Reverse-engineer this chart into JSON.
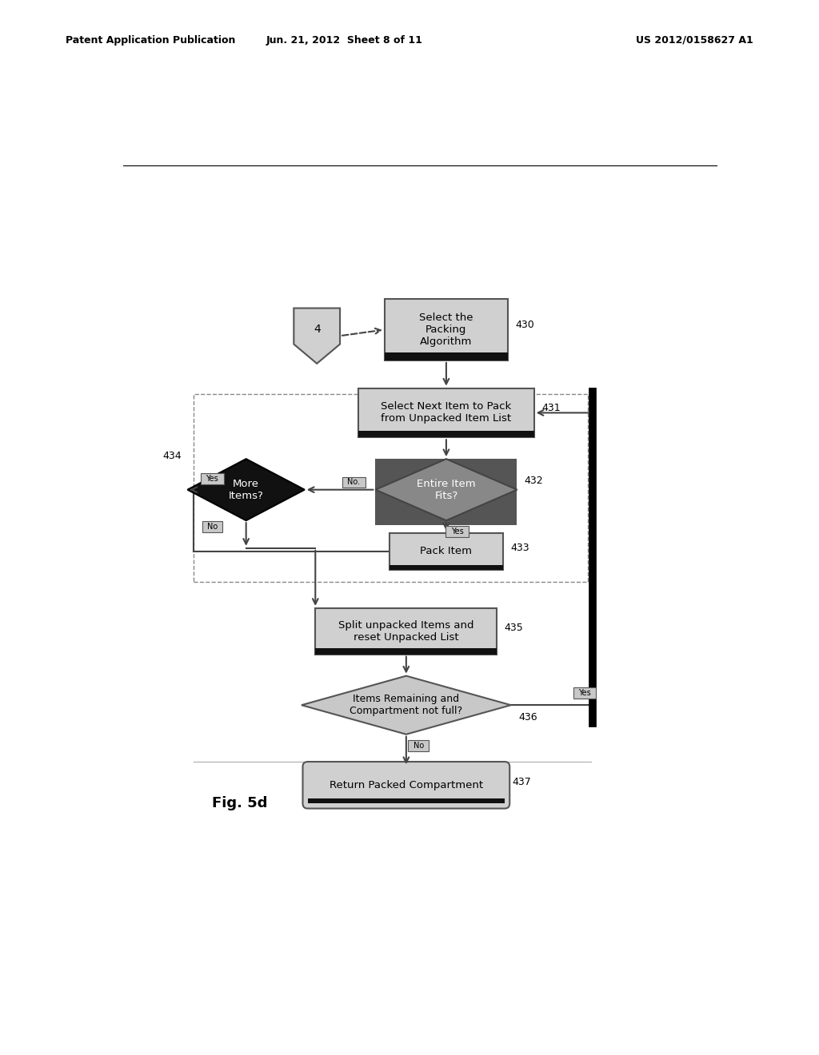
{
  "header_left": "Patent Application Publication",
  "header_mid": "Jun. 21, 2012  Sheet 8 of 11",
  "header_right": "US 2012/0158627 A1",
  "fig_label": "Fig. 5d",
  "background_color": "#ffffff",
  "gray_light": "#cccccc",
  "gray_mid": "#999999",
  "black": "#111111",
  "white": "#ffffff",
  "edge_color": "#555555",
  "arrow_color": "#444444"
}
